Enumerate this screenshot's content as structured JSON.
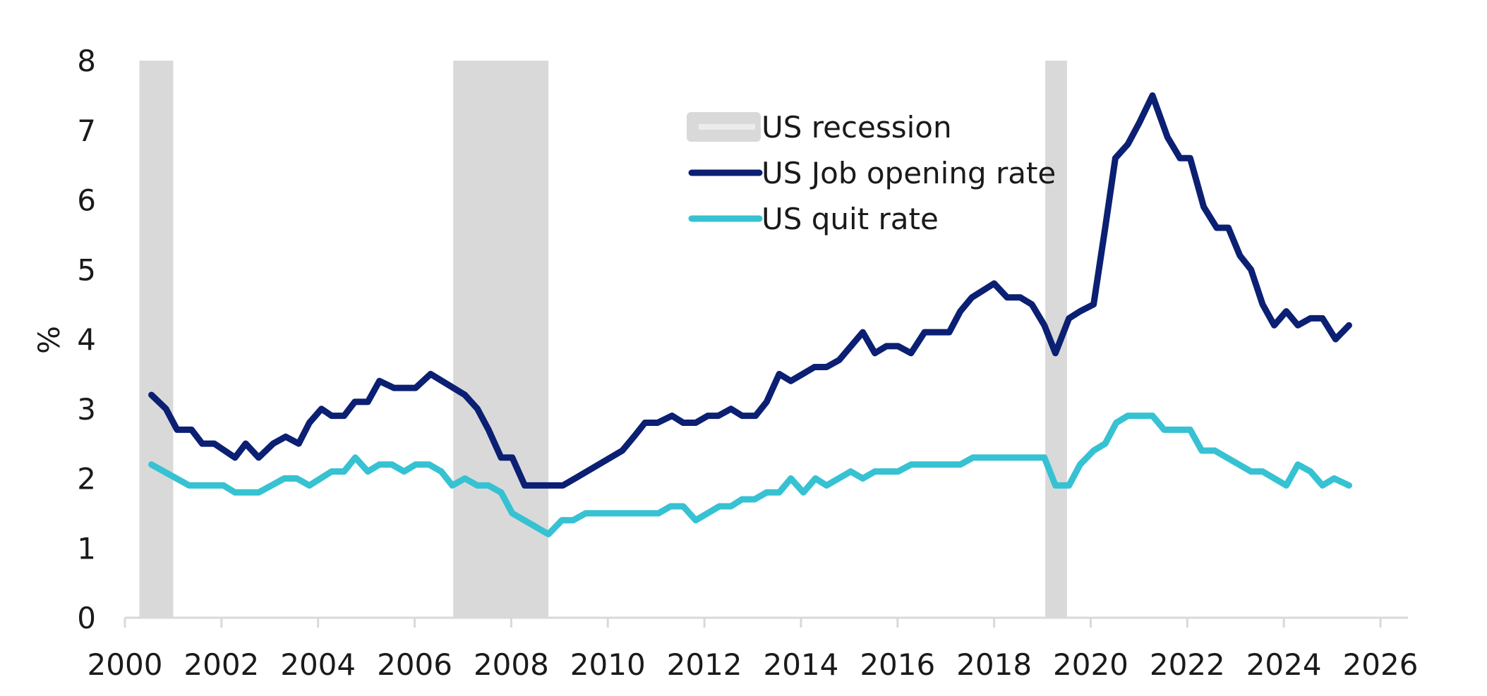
{
  "chart_data": {
    "type": "line",
    "title": "",
    "xlabel": "",
    "ylabel": "%",
    "xlim": [
      2000,
      2026
    ],
    "ylim": [
      0,
      8
    ],
    "x_ticks": [
      "2000",
      "2002",
      "2004",
      "2006",
      "2008",
      "2010",
      "2012",
      "2014",
      "2016",
      "2018",
      "2020",
      "2022",
      "2024",
      "2026"
    ],
    "y_ticks": [
      "0",
      "1",
      "2",
      "3",
      "4",
      "5",
      "6",
      "7",
      "8"
    ],
    "grid": false,
    "legend_placement": "top-center",
    "colors": {
      "recession": "#d9d9d9",
      "job_opening": "#0b1f73",
      "quit": "#36c2d2"
    },
    "recessions": [
      {
        "name": "US recession",
        "start": 2000.3,
        "end": 2001.0
      },
      {
        "start": 2006.8,
        "end": 2008.77
      },
      {
        "start": 2019.06,
        "end": 2019.51
      }
    ],
    "legend": [
      "US recession",
      "US Job opening rate",
      "US quit rate"
    ],
    "series": [
      {
        "name": "US Job opening rate",
        "points": [
          [
            2000.55,
            3.2
          ],
          [
            2000.85,
            3.0
          ],
          [
            2001.08,
            2.7
          ],
          [
            2001.38,
            2.7
          ],
          [
            2001.6,
            2.5
          ],
          [
            2001.85,
            2.5
          ],
          [
            2002.28,
            2.3
          ],
          [
            2002.5,
            2.5
          ],
          [
            2002.77,
            2.3
          ],
          [
            2003.07,
            2.5
          ],
          [
            2003.33,
            2.6
          ],
          [
            2003.6,
            2.5
          ],
          [
            2003.82,
            2.8
          ],
          [
            2004.07,
            3.0
          ],
          [
            2004.28,
            2.9
          ],
          [
            2004.54,
            2.9
          ],
          [
            2004.76,
            3.1
          ],
          [
            2005.03,
            3.1
          ],
          [
            2005.27,
            3.4
          ],
          [
            2005.57,
            3.3
          ],
          [
            2006.02,
            3.3
          ],
          [
            2006.33,
            3.5
          ],
          [
            2007.04,
            3.2
          ],
          [
            2007.3,
            3.0
          ],
          [
            2007.53,
            2.7
          ],
          [
            2007.79,
            2.3
          ],
          [
            2008.02,
            2.3
          ],
          [
            2008.28,
            1.9
          ],
          [
            2009.07,
            1.9
          ],
          [
            2009.32,
            2.0
          ],
          [
            2010.3,
            2.4
          ],
          [
            2010.54,
            2.6
          ],
          [
            2010.77,
            2.8
          ],
          [
            2011.03,
            2.8
          ],
          [
            2011.33,
            2.9
          ],
          [
            2011.56,
            2.8
          ],
          [
            2011.82,
            2.8
          ],
          [
            2012.07,
            2.9
          ],
          [
            2012.29,
            2.9
          ],
          [
            2012.55,
            3.0
          ],
          [
            2012.78,
            2.9
          ],
          [
            2013.06,
            2.9
          ],
          [
            2013.29,
            3.1
          ],
          [
            2013.55,
            3.5
          ],
          [
            2013.79,
            3.4
          ],
          [
            2014.28,
            3.6
          ],
          [
            2014.53,
            3.6
          ],
          [
            2014.79,
            3.7
          ],
          [
            2015.28,
            4.1
          ],
          [
            2015.53,
            3.8
          ],
          [
            2015.77,
            3.9
          ],
          [
            2016.01,
            3.9
          ],
          [
            2016.28,
            3.8
          ],
          [
            2016.56,
            4.1
          ],
          [
            2017.07,
            4.1
          ],
          [
            2017.3,
            4.4
          ],
          [
            2017.54,
            4.6
          ],
          [
            2018.0,
            4.8
          ],
          [
            2018.27,
            4.6
          ],
          [
            2018.54,
            4.6
          ],
          [
            2018.78,
            4.5
          ],
          [
            2019.04,
            4.2
          ],
          [
            2019.27,
            3.8
          ],
          [
            2019.55,
            4.3
          ],
          [
            2019.78,
            4.4
          ],
          [
            2020.06,
            4.5
          ],
          [
            2020.3,
            5.6
          ],
          [
            2020.51,
            6.6
          ],
          [
            2020.77,
            6.8
          ],
          [
            2021.0,
            7.1
          ],
          [
            2021.28,
            7.5
          ],
          [
            2021.59,
            6.9
          ],
          [
            2021.85,
            6.6
          ],
          [
            2022.06,
            6.6
          ],
          [
            2022.34,
            5.9
          ],
          [
            2022.61,
            5.6
          ],
          [
            2022.85,
            5.6
          ],
          [
            2023.09,
            5.2
          ],
          [
            2023.32,
            5.0
          ],
          [
            2023.56,
            4.5
          ],
          [
            2023.8,
            4.2
          ],
          [
            2024.05,
            4.4
          ],
          [
            2024.29,
            4.2
          ],
          [
            2024.55,
            4.3
          ],
          [
            2024.8,
            4.3
          ],
          [
            2025.07,
            4.0
          ],
          [
            2025.35,
            4.2
          ]
        ]
      },
      {
        "name": "US quit rate",
        "points": [
          [
            2000.55,
            2.2
          ],
          [
            2001.33,
            1.9
          ],
          [
            2002.04,
            1.9
          ],
          [
            2002.28,
            1.8
          ],
          [
            2002.77,
            1.8
          ],
          [
            2003.3,
            2.0
          ],
          [
            2003.56,
            2.0
          ],
          [
            2003.82,
            1.9
          ],
          [
            2004.28,
            2.1
          ],
          [
            2004.54,
            2.1
          ],
          [
            2004.77,
            2.3
          ],
          [
            2005.03,
            2.1
          ],
          [
            2005.27,
            2.2
          ],
          [
            2005.53,
            2.2
          ],
          [
            2005.78,
            2.1
          ],
          [
            2006.02,
            2.2
          ],
          [
            2006.3,
            2.2
          ],
          [
            2006.55,
            2.1
          ],
          [
            2006.78,
            1.9
          ],
          [
            2007.04,
            2.0
          ],
          [
            2007.3,
            1.9
          ],
          [
            2007.53,
            1.9
          ],
          [
            2007.79,
            1.8
          ],
          [
            2008.02,
            1.5
          ],
          [
            2008.77,
            1.2
          ],
          [
            2009.05,
            1.4
          ],
          [
            2009.28,
            1.4
          ],
          [
            2009.54,
            1.5
          ],
          [
            2011.05,
            1.5
          ],
          [
            2011.3,
            1.6
          ],
          [
            2011.56,
            1.6
          ],
          [
            2011.82,
            1.4
          ],
          [
            2012.31,
            1.6
          ],
          [
            2012.55,
            1.6
          ],
          [
            2012.78,
            1.7
          ],
          [
            2013.04,
            1.7
          ],
          [
            2013.29,
            1.8
          ],
          [
            2013.55,
            1.8
          ],
          [
            2013.79,
            2.0
          ],
          [
            2014.05,
            1.8
          ],
          [
            2014.3,
            2.0
          ],
          [
            2014.53,
            1.9
          ],
          [
            2015.03,
            2.1
          ],
          [
            2015.28,
            2.0
          ],
          [
            2015.53,
            2.1
          ],
          [
            2016.01,
            2.1
          ],
          [
            2016.28,
            2.2
          ],
          [
            2017.3,
            2.2
          ],
          [
            2017.56,
            2.3
          ],
          [
            2019.04,
            2.3
          ],
          [
            2019.27,
            1.9
          ],
          [
            2019.55,
            1.9
          ],
          [
            2019.78,
            2.2
          ],
          [
            2020.06,
            2.4
          ],
          [
            2020.3,
            2.5
          ],
          [
            2020.53,
            2.8
          ],
          [
            2020.77,
            2.9
          ],
          [
            2021.28,
            2.9
          ],
          [
            2021.52,
            2.7
          ],
          [
            2022.06,
            2.7
          ],
          [
            2022.3,
            2.4
          ],
          [
            2022.57,
            2.4
          ],
          [
            2023.32,
            2.1
          ],
          [
            2023.56,
            2.1
          ],
          [
            2024.05,
            1.9
          ],
          [
            2024.29,
            2.2
          ],
          [
            2024.55,
            2.1
          ],
          [
            2024.8,
            1.9
          ],
          [
            2025.04,
            2.0
          ],
          [
            2025.35,
            1.9
          ]
        ]
      }
    ]
  }
}
